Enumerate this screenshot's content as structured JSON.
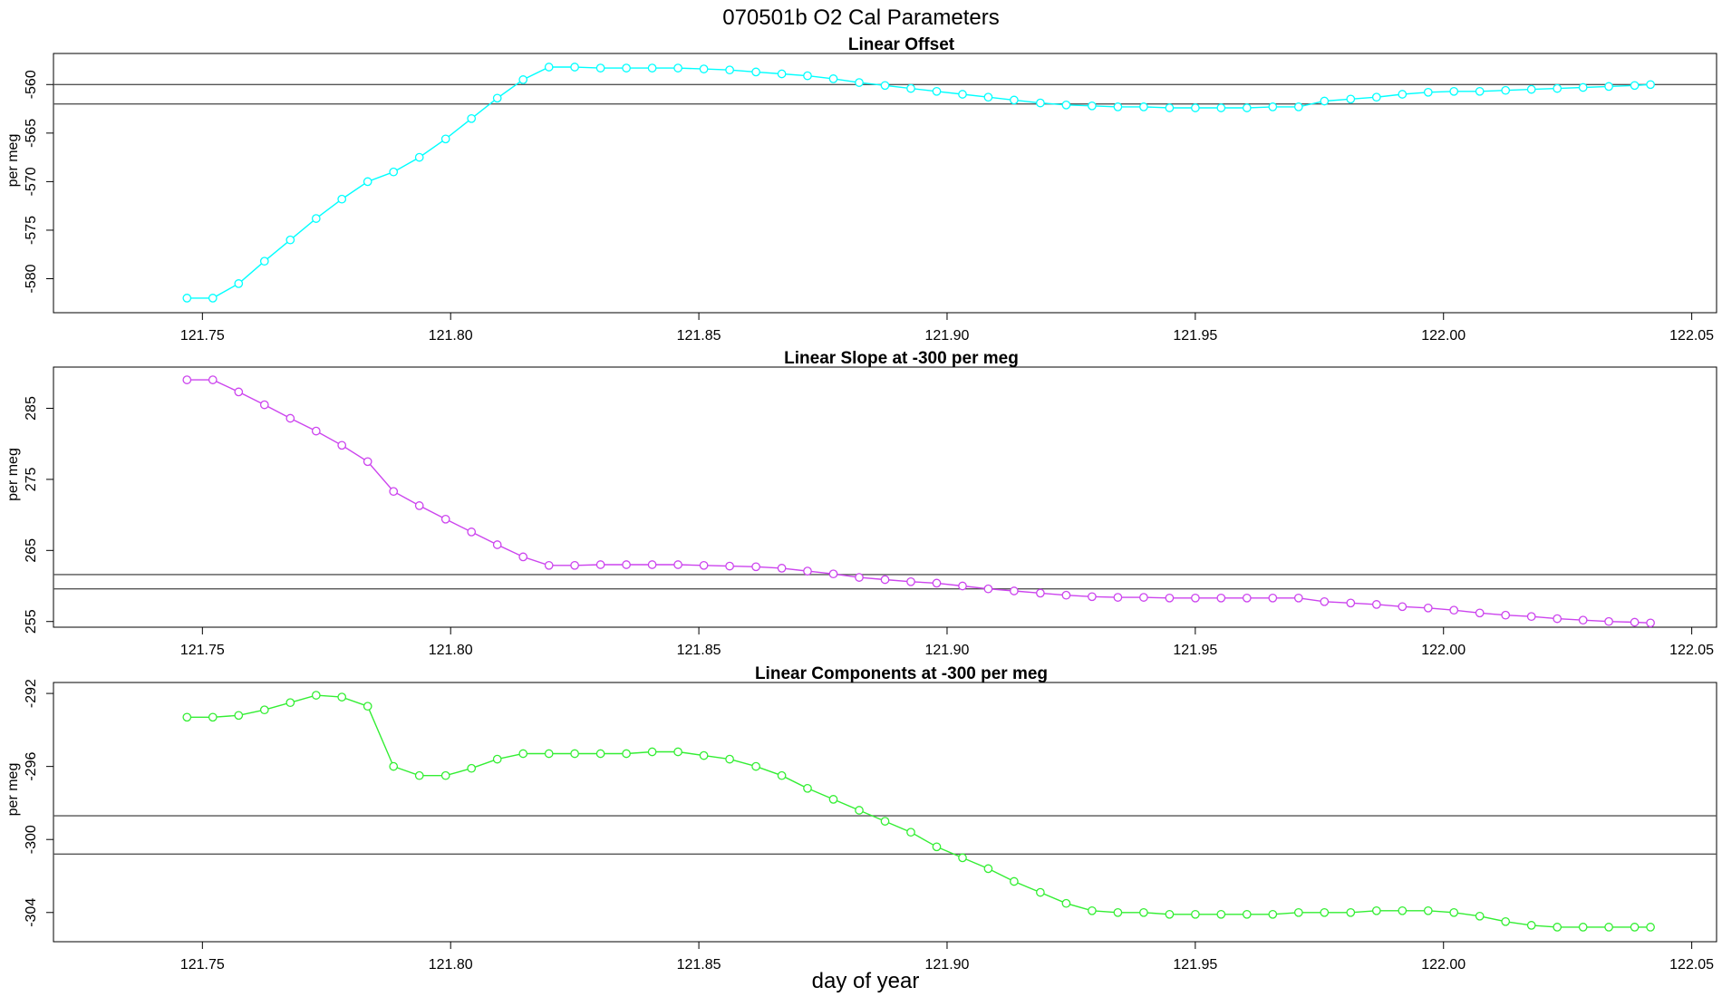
{
  "figure": {
    "title": "070501b   O2 Cal Parameters",
    "xlabel": "day of year"
  },
  "chart_data": [
    {
      "type": "line",
      "title": "Linear Offset",
      "ylabel": "per meg",
      "color": "#00ffff",
      "xlim": [
        121.72,
        122.055
      ],
      "ylim": [
        -583.5,
        -556.8
      ],
      "xticks": [
        121.75,
        121.8,
        121.85,
        121.9,
        121.95,
        122.0,
        122.05
      ],
      "xtick_labels": [
        "121.75",
        "121.80",
        "121.85",
        "121.90",
        "121.95",
        "122.00",
        "122.05"
      ],
      "yticks": [
        -560,
        -565,
        -570,
        -575,
        -580
      ],
      "ytick_labels": [
        "-560",
        "-565",
        "-570",
        "-575",
        "-580"
      ],
      "hlines": [
        -560.0,
        -562.0
      ],
      "x": [
        121.7469,
        121.7521,
        121.7573,
        121.7625,
        121.7677,
        121.7729,
        121.7781,
        121.7833,
        121.7885,
        121.7937,
        121.799,
        121.8042,
        121.8094,
        121.8146,
        121.8198,
        121.825,
        121.8302,
        121.8354,
        121.8406,
        121.8458,
        121.851,
        121.8562,
        121.8615,
        121.8667,
        121.8719,
        121.8771,
        121.8823,
        121.8875,
        121.8927,
        121.8979,
        121.9031,
        121.9083,
        121.9135,
        121.9188,
        121.924,
        121.9292,
        121.9344,
        121.9396,
        121.9448,
        121.95,
        121.9552,
        121.9604,
        121.9656,
        121.9708,
        121.976,
        121.9813,
        121.9865,
        121.9917,
        121.9969,
        122.0021,
        122.0073,
        122.0125,
        122.0177,
        122.0229,
        122.0281,
        122.0333,
        122.0385,
        122.0417
      ],
      "y": [
        -582.0,
        -582.0,
        -580.5,
        -578.2,
        -576.0,
        -573.8,
        -571.8,
        -570.0,
        -569.0,
        -567.5,
        -565.6,
        -563.5,
        -561.4,
        -559.5,
        -558.2,
        -558.2,
        -558.3,
        -558.3,
        -558.3,
        -558.3,
        -558.4,
        -558.5,
        -558.7,
        -558.9,
        -559.1,
        -559.4,
        -559.8,
        -560.1,
        -560.4,
        -560.7,
        -561.0,
        -561.3,
        -561.6,
        -561.9,
        -562.1,
        -562.2,
        -562.3,
        -562.3,
        -562.4,
        -562.4,
        -562.4,
        -562.4,
        -562.3,
        -562.3,
        -561.7,
        -561.5,
        -561.3,
        -561.0,
        -560.8,
        -560.7,
        -560.7,
        -560.6,
        -560.5,
        -560.4,
        -560.3,
        -560.2,
        -560.1,
        -560.0
      ]
    },
    {
      "type": "line",
      "title": "Linear Slope at -300 per meg",
      "ylabel": "per meg",
      "color": "#cc44ee",
      "xlim": [
        121.72,
        122.055
      ],
      "ylim": [
        254.2,
        290.8
      ],
      "xticks": [
        121.75,
        121.8,
        121.85,
        121.9,
        121.95,
        122.0,
        122.05
      ],
      "xtick_labels": [
        "121.75",
        "121.80",
        "121.85",
        "121.90",
        "121.95",
        "122.00",
        "122.05"
      ],
      "yticks": [
        255,
        265,
        275,
        285
      ],
      "ytick_labels": [
        "255",
        "265",
        "275",
        "285"
      ],
      "hlines": [
        261.6,
        259.6
      ],
      "x": [
        121.7469,
        121.7521,
        121.7573,
        121.7625,
        121.7677,
        121.7729,
        121.7781,
        121.7833,
        121.7885,
        121.7937,
        121.799,
        121.8042,
        121.8094,
        121.8146,
        121.8198,
        121.825,
        121.8302,
        121.8354,
        121.8406,
        121.8458,
        121.851,
        121.8562,
        121.8615,
        121.8667,
        121.8719,
        121.8771,
        121.8823,
        121.8875,
        121.8927,
        121.8979,
        121.9031,
        121.9083,
        121.9135,
        121.9188,
        121.924,
        121.9292,
        121.9344,
        121.9396,
        121.9448,
        121.95,
        121.9552,
        121.9604,
        121.9656,
        121.9708,
        121.976,
        121.9813,
        121.9865,
        121.9917,
        121.9969,
        122.0021,
        122.0073,
        122.0125,
        122.0177,
        122.0229,
        122.0281,
        122.0333,
        122.0385,
        122.0417
      ],
      "y": [
        289.0,
        289.0,
        287.3,
        285.5,
        283.6,
        281.8,
        279.8,
        277.5,
        273.3,
        271.3,
        269.4,
        267.6,
        265.8,
        264.1,
        262.9,
        262.9,
        263.0,
        263.0,
        263.0,
        263.0,
        262.9,
        262.8,
        262.7,
        262.5,
        262.1,
        261.7,
        261.2,
        260.9,
        260.6,
        260.4,
        260.0,
        259.6,
        259.3,
        259.0,
        258.7,
        258.5,
        258.4,
        258.4,
        258.3,
        258.3,
        258.3,
        258.3,
        258.3,
        258.3,
        257.8,
        257.6,
        257.4,
        257.1,
        256.9,
        256.6,
        256.2,
        255.9,
        255.7,
        255.4,
        255.2,
        255.0,
        254.9,
        254.8
      ]
    },
    {
      "type": "line",
      "title": "Linear Components at -300 per meg",
      "ylabel": "per meg",
      "color": "#33ee33",
      "xlim": [
        121.72,
        122.055
      ],
      "ylim": [
        -305.6,
        -291.4
      ],
      "xticks": [
        121.75,
        121.8,
        121.85,
        121.9,
        121.95,
        122.0,
        122.05
      ],
      "xtick_labels": [
        "121.75",
        "121.80",
        "121.85",
        "121.90",
        "121.95",
        "122.00",
        "122.05"
      ],
      "yticks": [
        -292,
        -296,
        -300,
        -304
      ],
      "ytick_labels": [
        "-292",
        "-296",
        "-300",
        "-304"
      ],
      "hlines": [
        -298.7,
        -300.8
      ],
      "x": [
        121.7469,
        121.7521,
        121.7573,
        121.7625,
        121.7677,
        121.7729,
        121.7781,
        121.7833,
        121.7885,
        121.7937,
        121.799,
        121.8042,
        121.8094,
        121.8146,
        121.8198,
        121.825,
        121.8302,
        121.8354,
        121.8406,
        121.8458,
        121.851,
        121.8562,
        121.8615,
        121.8667,
        121.8719,
        121.8771,
        121.8823,
        121.8875,
        121.8927,
        121.8979,
        121.9031,
        121.9083,
        121.9135,
        121.9188,
        121.924,
        121.9292,
        121.9344,
        121.9396,
        121.9448,
        121.95,
        121.9552,
        121.9604,
        121.9656,
        121.9708,
        121.976,
        121.9813,
        121.9865,
        121.9917,
        121.9969,
        122.0021,
        122.0073,
        122.0125,
        122.0177,
        122.0229,
        122.0281,
        122.0333,
        122.0385,
        122.0417
      ],
      "y": [
        -293.3,
        -293.3,
        -293.2,
        -292.9,
        -292.5,
        -292.1,
        -292.2,
        -292.7,
        -296.0,
        -296.5,
        -296.5,
        -296.1,
        -295.6,
        -295.3,
        -295.3,
        -295.3,
        -295.3,
        -295.3,
        -295.2,
        -295.2,
        -295.4,
        -295.6,
        -296.0,
        -296.5,
        -297.2,
        -297.8,
        -298.4,
        -299.0,
        -299.6,
        -300.4,
        -301.0,
        -301.6,
        -302.3,
        -302.9,
        -303.5,
        -303.9,
        -304.0,
        -304.0,
        -304.1,
        -304.1,
        -304.1,
        -304.1,
        -304.1,
        -304.0,
        -304.0,
        -304.0,
        -303.9,
        -303.9,
        -303.9,
        -304.0,
        -304.2,
        -304.5,
        -304.7,
        -304.8,
        -304.8,
        -304.8,
        -304.8,
        -304.8
      ]
    }
  ]
}
